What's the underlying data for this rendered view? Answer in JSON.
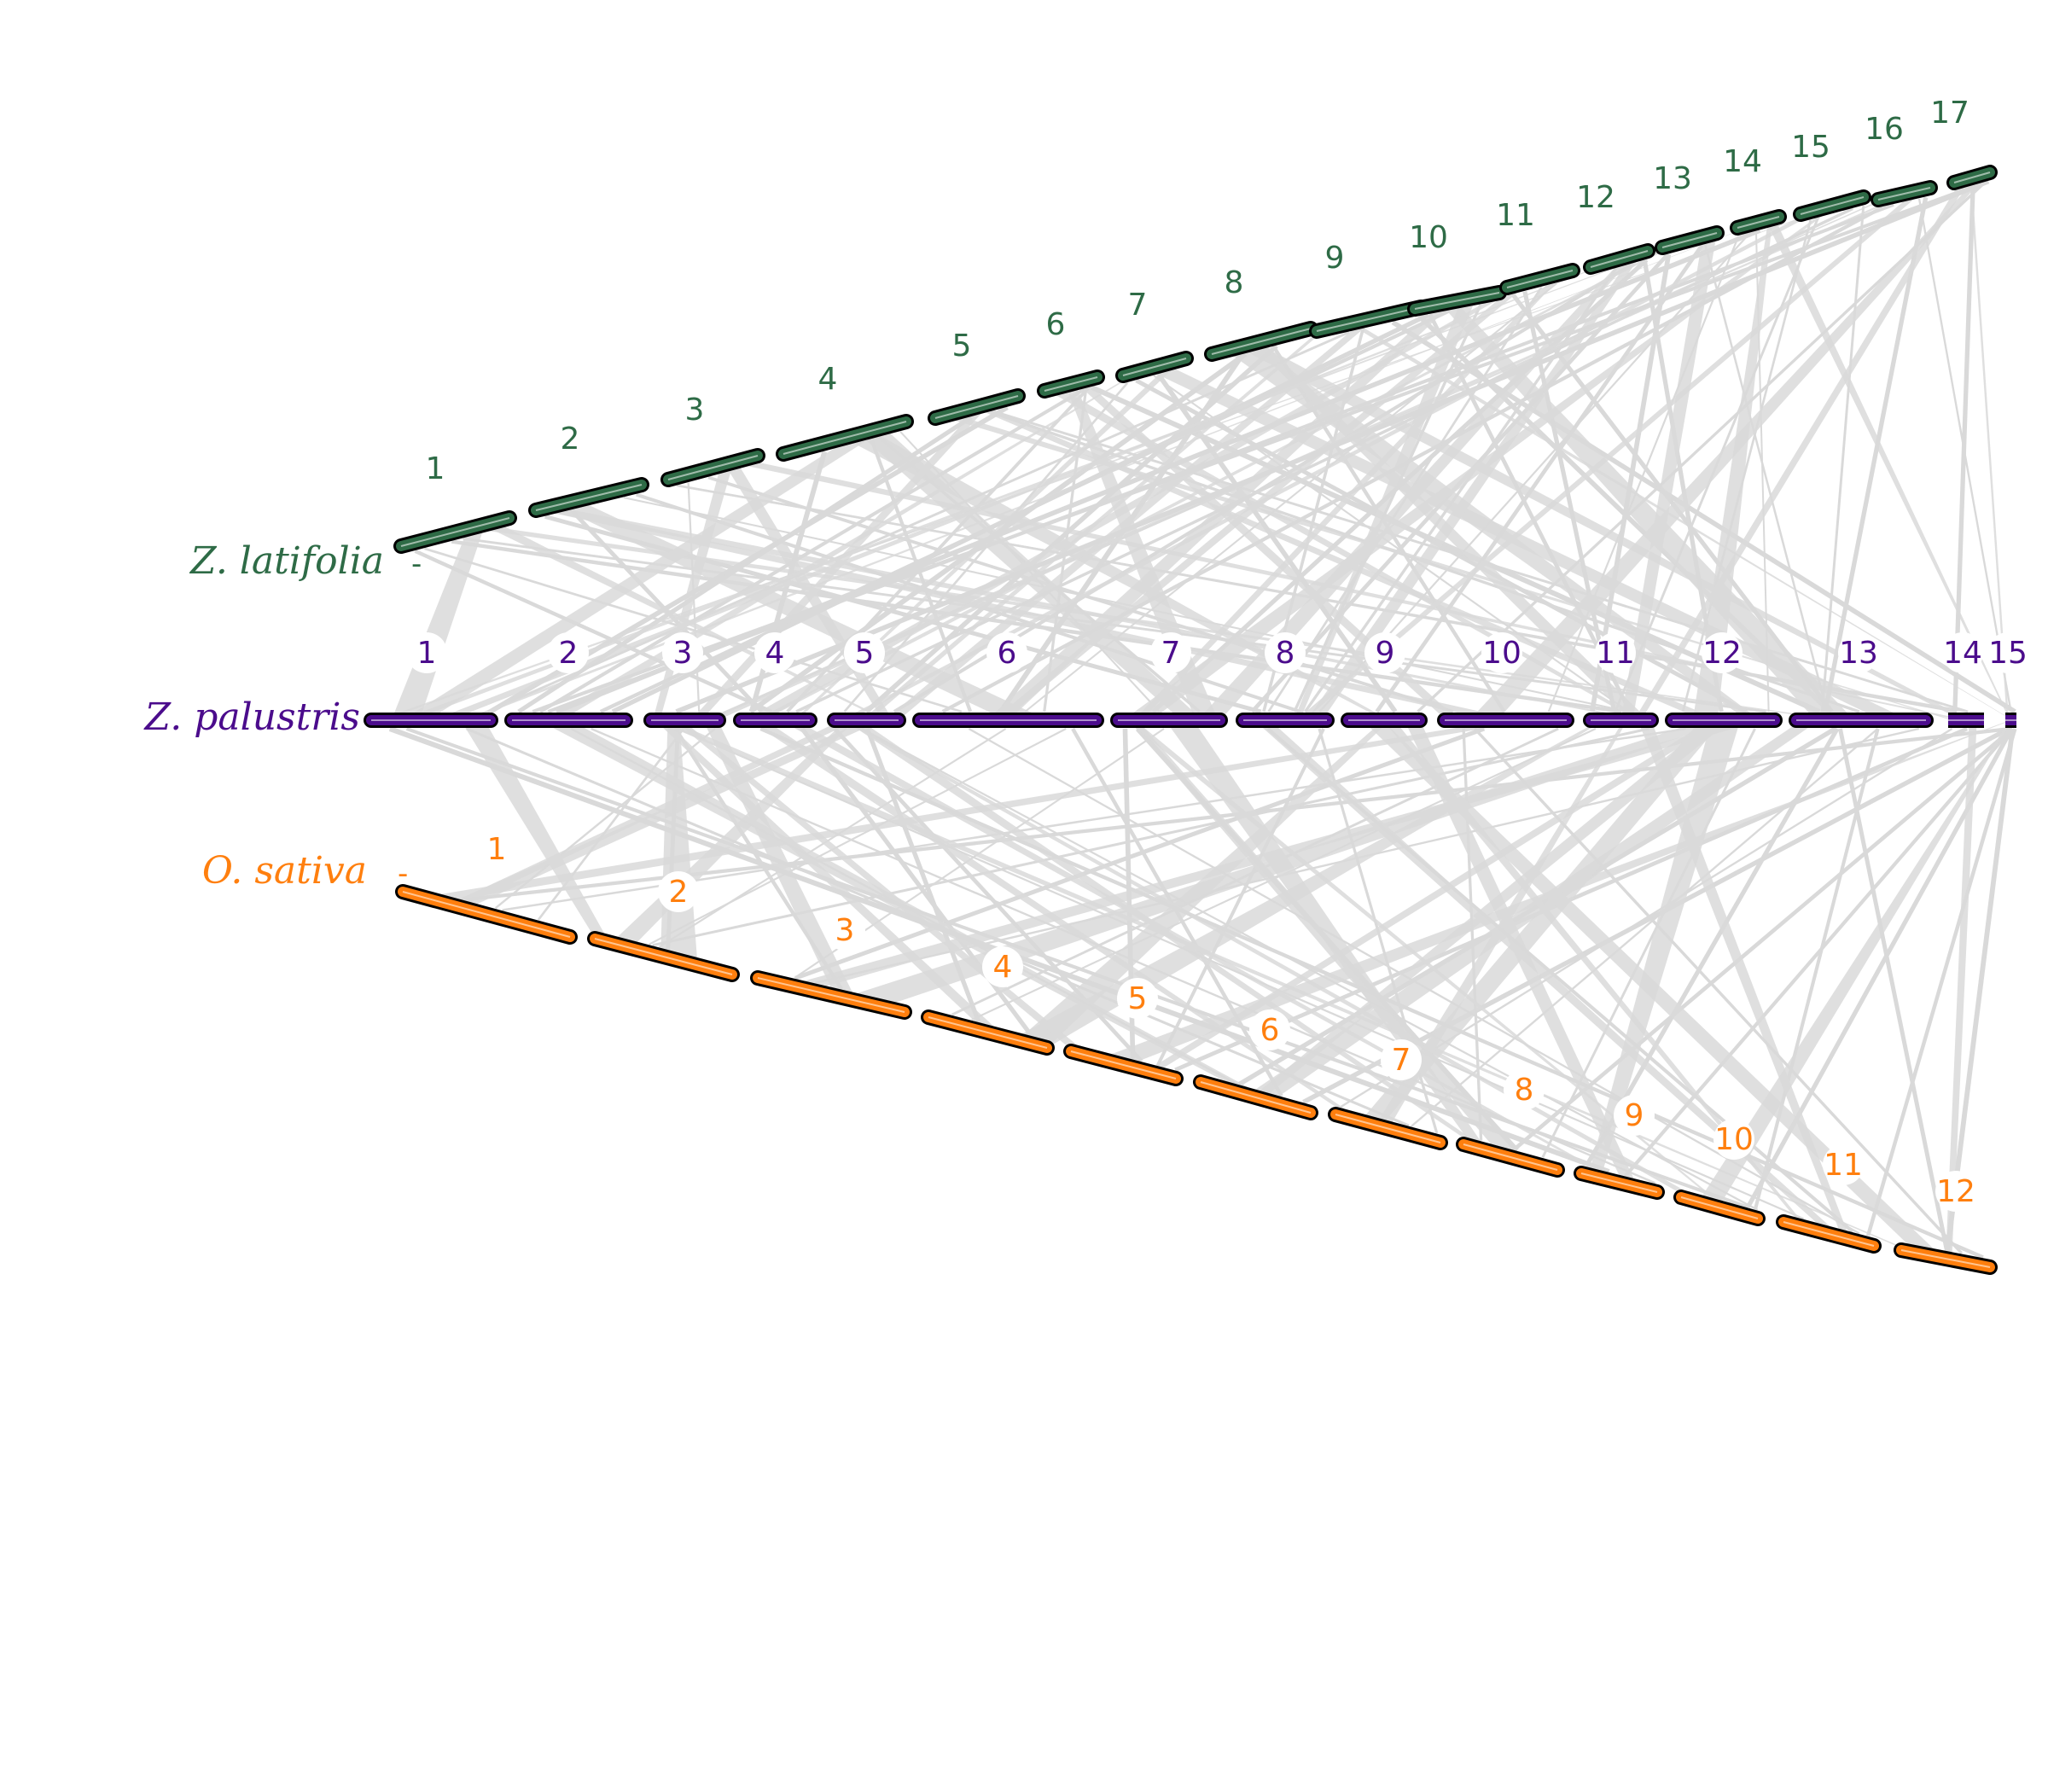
{
  "diagram": {
    "species": [
      {
        "key": "zl",
        "name": "Z. latifolia",
        "color": "#2e6b46",
        "chromosomes": [
          "1",
          "2",
          "3",
          "4",
          "5",
          "6",
          "7",
          "8",
          "9",
          "10",
          "11",
          "12",
          "13",
          "14",
          "15",
          "16",
          "17"
        ]
      },
      {
        "key": "zp",
        "name": "Z. palustris",
        "color": "#4b0c8c",
        "chromosomes": [
          "1",
          "2",
          "3",
          "4",
          "5",
          "6",
          "7",
          "8",
          "9",
          "10",
          "11",
          "12",
          "13",
          "14",
          "15"
        ]
      },
      {
        "key": "os",
        "name": "O. sativa",
        "color": "#ff7f0e",
        "chromosomes": [
          "1",
          "2",
          "3",
          "4",
          "5",
          "6",
          "7",
          "8",
          "9",
          "10",
          "11",
          "12"
        ]
      }
    ],
    "tick_mark": "-",
    "link_color": "#d9d9d9",
    "outline_color": "#000000"
  }
}
